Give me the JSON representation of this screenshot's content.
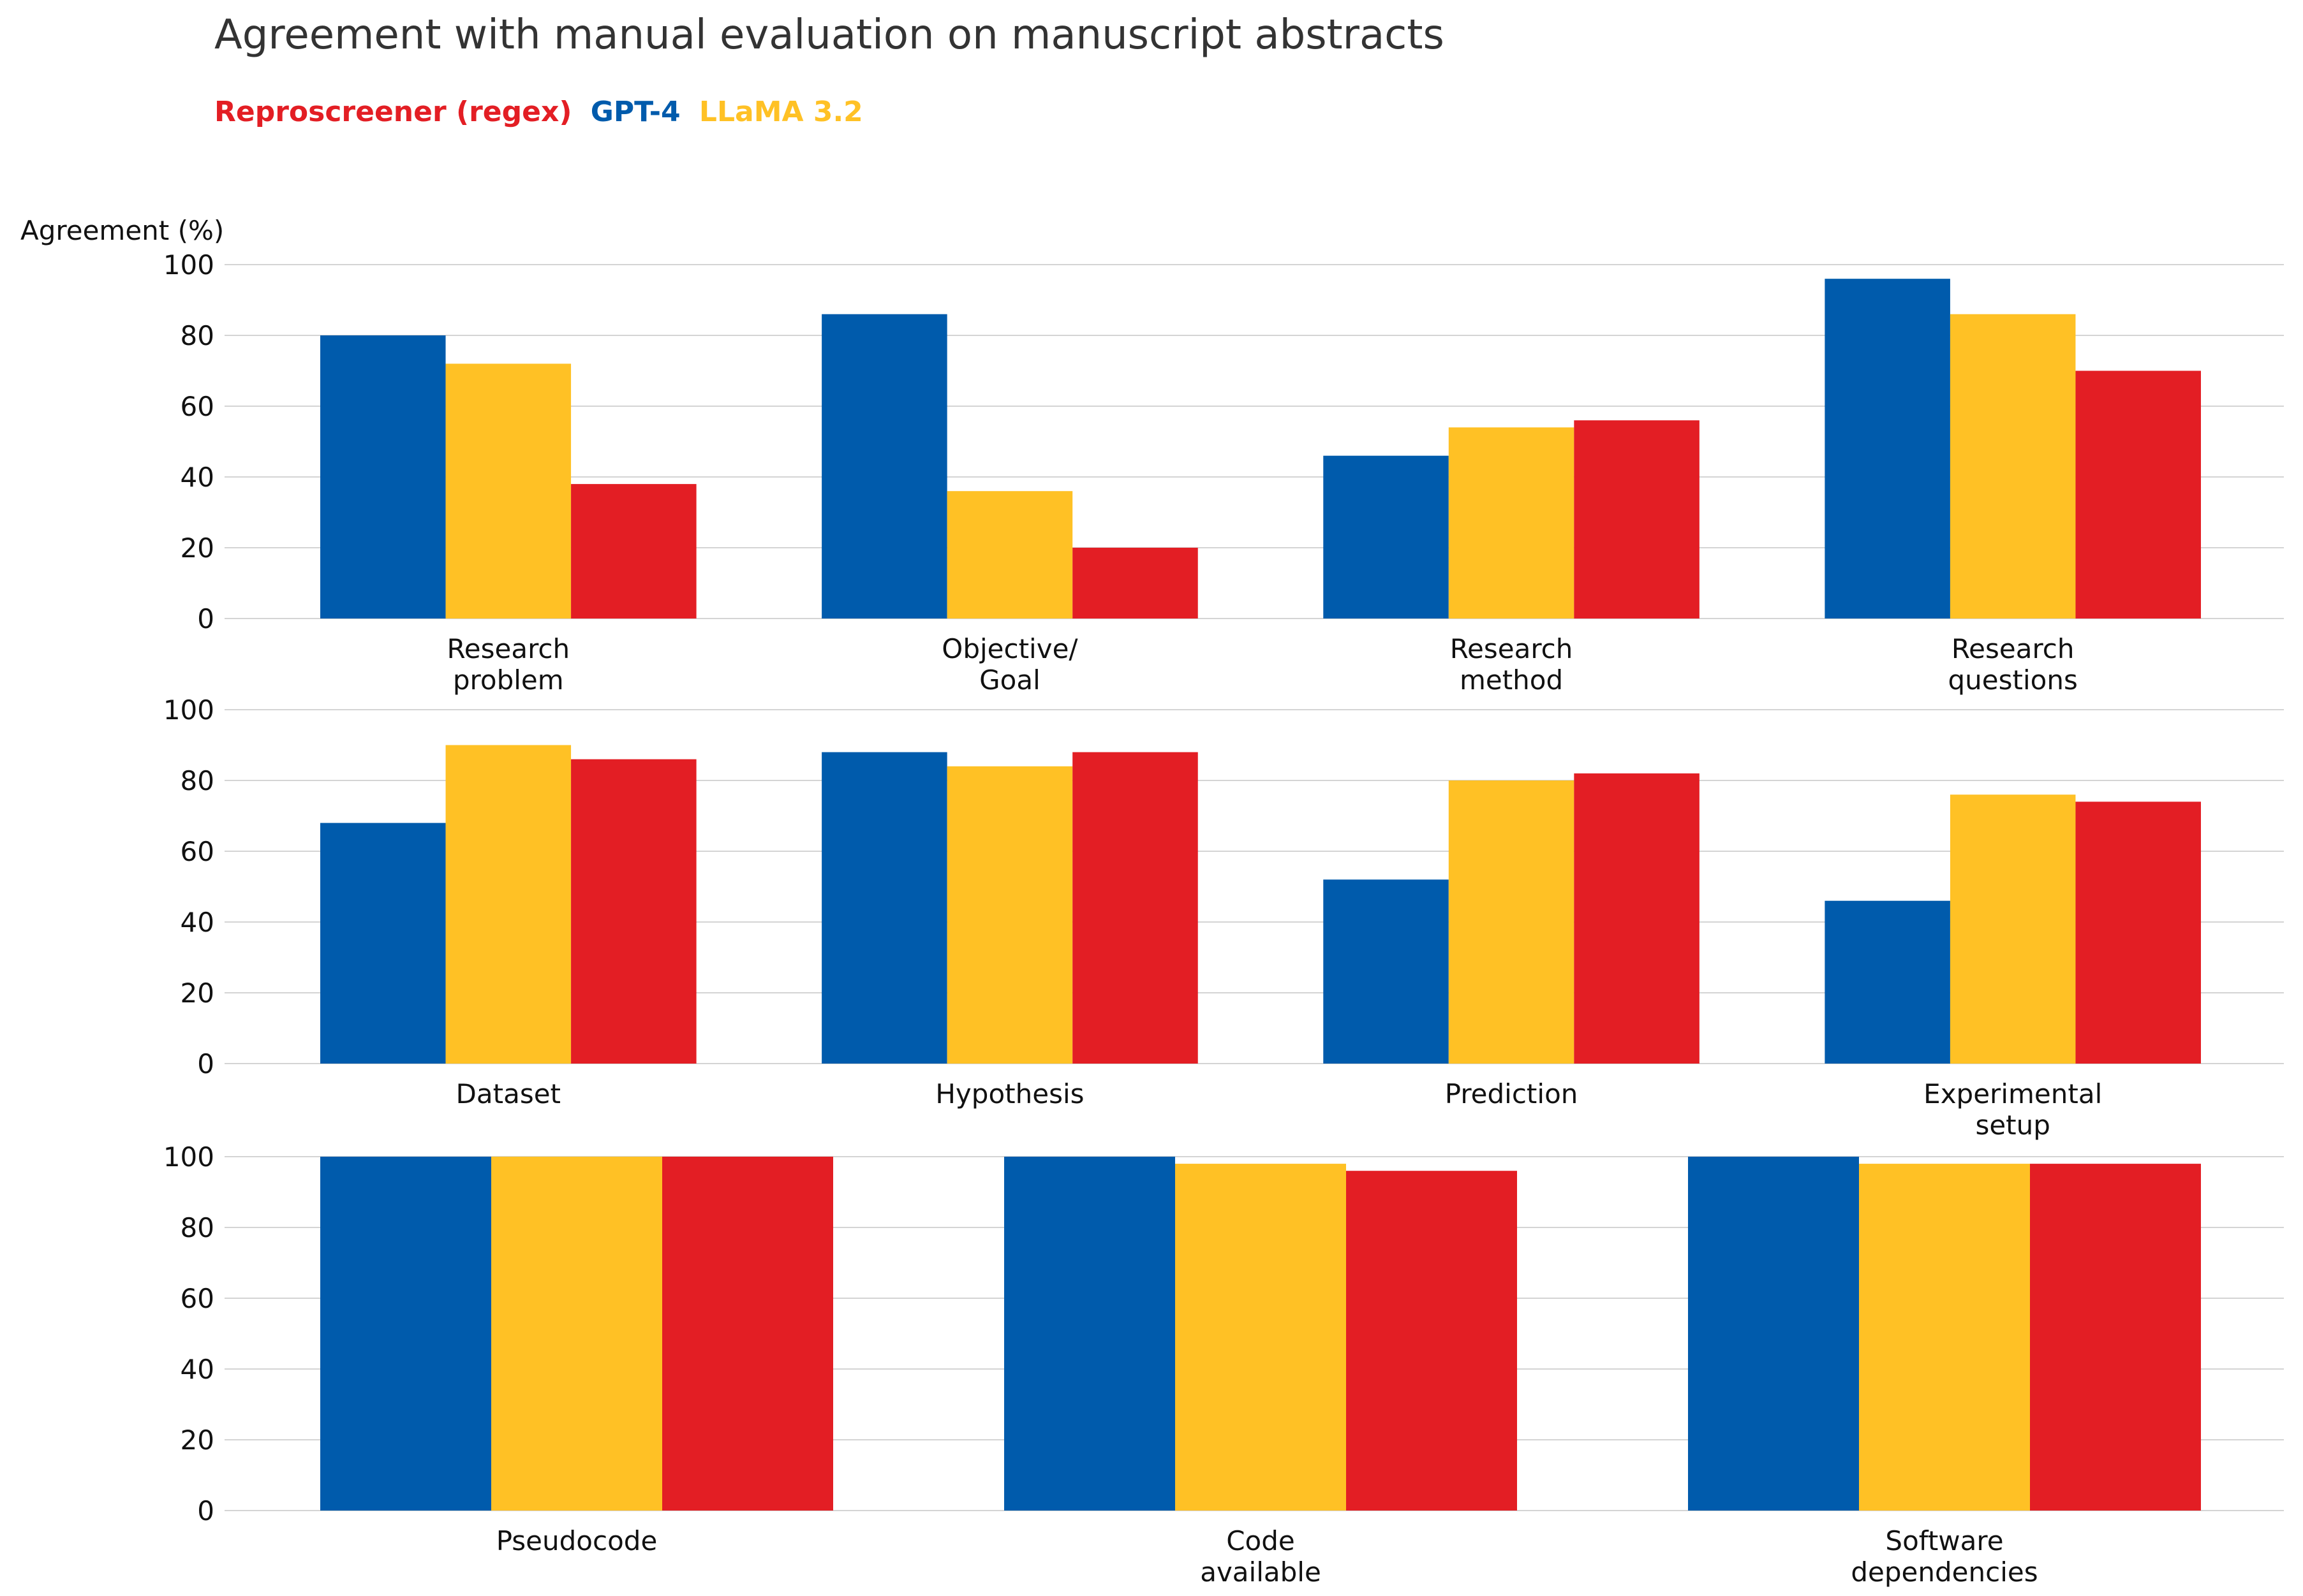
{
  "chart_data": {
    "type": "bar",
    "title": "Agreement with manual evaluation on manuscript abstracts",
    "ylabel": "Agreement (%)",
    "ylim": [
      0,
      100
    ],
    "yticks": [
      "0",
      "20",
      "40",
      "60",
      "80",
      "100"
    ],
    "grid": true,
    "legend": {
      "placement": "top-left",
      "entries": [
        {
          "name": "Reproscreener (regex)",
          "color": "#E31E24"
        },
        {
          "name": "GPT-4",
          "color": "#005BAC"
        },
        {
          "name": "LLaMA 3.2",
          "color": "#FFC125"
        }
      ]
    },
    "series_order": [
      "GPT-4",
      "LLaMA 3.2",
      "Reproscreener (regex)"
    ],
    "series_colors": [
      "#005BAC",
      "#FFC125",
      "#E31E24"
    ],
    "panels": [
      {
        "categories": [
          [
            "Research",
            "problem"
          ],
          [
            "Objective/",
            "Goal"
          ],
          [
            "Research",
            "method"
          ],
          [
            "Research",
            "questions"
          ]
        ],
        "series": [
          {
            "name": "GPT-4",
            "values": [
              80,
              86,
              46,
              96
            ]
          },
          {
            "name": "LLaMA 3.2",
            "values": [
              72,
              36,
              54,
              86
            ]
          },
          {
            "name": "Reproscreener (regex)",
            "values": [
              38,
              20,
              56,
              70
            ]
          }
        ]
      },
      {
        "categories": [
          [
            "Dataset"
          ],
          [
            "Hypothesis"
          ],
          [
            "Prediction"
          ],
          [
            "Experimental",
            "setup"
          ]
        ],
        "series": [
          {
            "name": "GPT-4",
            "values": [
              68,
              88,
              52,
              46
            ]
          },
          {
            "name": "LLaMA 3.2",
            "values": [
              90,
              84,
              80,
              76
            ]
          },
          {
            "name": "Reproscreener (regex)",
            "values": [
              86,
              88,
              82,
              74
            ]
          }
        ]
      },
      {
        "categories": [
          [
            "Pseudocode"
          ],
          [
            "Code",
            "available"
          ],
          [
            "Software",
            "dependencies"
          ]
        ],
        "series": [
          {
            "name": "GPT-4",
            "values": [
              100,
              100,
              100
            ]
          },
          {
            "name": "LLaMA 3.2",
            "values": [
              100,
              98,
              98
            ]
          },
          {
            "name": "Reproscreener (regex)",
            "values": [
              100,
              96,
              98
            ]
          }
        ]
      }
    ]
  }
}
